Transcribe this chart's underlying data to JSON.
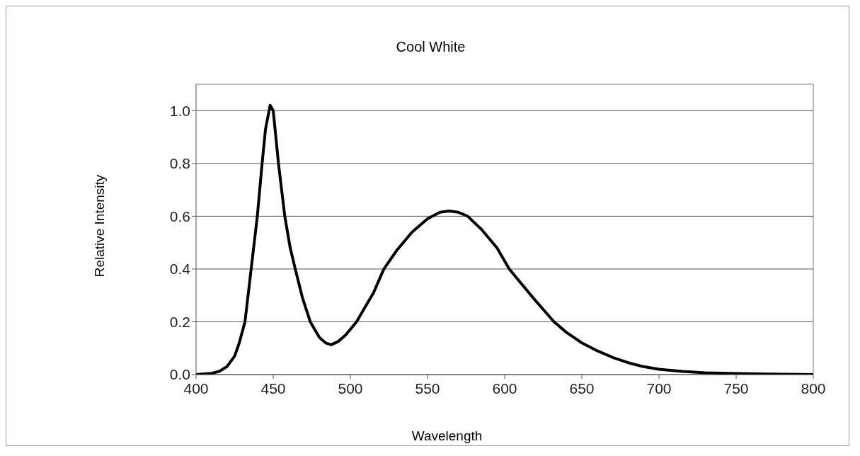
{
  "chart_data": {
    "type": "line",
    "title": "Cool White",
    "xlabel": "Wavelength",
    "ylabel": "Relative Intensity",
    "x": [
      400,
      410,
      415,
      420,
      425,
      428,
      431.7,
      435.7,
      439.7,
      442.8,
      445,
      448,
      450,
      453.4,
      457.5,
      461,
      464.3,
      469,
      474,
      480,
      484,
      487.6,
      492,
      497,
      504,
      510,
      515,
      521.7,
      530,
      540,
      550,
      558,
      564,
      570,
      576,
      585,
      595,
      603,
      610,
      620,
      632,
      640,
      650,
      660,
      670,
      680,
      690,
      700,
      715,
      730,
      750,
      770,
      800
    ],
    "series": [
      {
        "color": "#000000",
        "values": [
          0.0,
          0.005,
          0.012,
          0.03,
          0.07,
          0.12,
          0.2,
          0.4,
          0.6,
          0.8,
          0.93,
          1.02,
          1.0,
          0.8,
          0.6,
          0.48,
          0.4,
          0.29,
          0.2,
          0.14,
          0.12,
          0.113,
          0.125,
          0.15,
          0.2,
          0.26,
          0.31,
          0.4,
          0.47,
          0.54,
          0.59,
          0.615,
          0.62,
          0.615,
          0.6,
          0.55,
          0.48,
          0.4,
          0.35,
          0.28,
          0.2,
          0.16,
          0.12,
          0.09,
          0.065,
          0.045,
          0.03,
          0.02,
          0.012,
          0.007,
          0.004,
          0.002,
          0.0
        ]
      }
    ],
    "xlim": [
      400,
      800
    ],
    "xticks": [
      400,
      450,
      500,
      550,
      600,
      650,
      700,
      750,
      800
    ],
    "ylim": [
      0,
      1.1
    ],
    "yticks": [
      {
        "value": 0,
        "label": "0.0"
      },
      {
        "value": 0.2,
        "label": "0.2"
      },
      {
        "value": 0.4,
        "label": "0.4"
      },
      {
        "value": 0.6,
        "label": "0.6"
      },
      {
        "value": 0.8,
        "label": "0.8"
      },
      {
        "value": 1,
        "label": "1.0"
      }
    ],
    "grid": "y",
    "marker": "none",
    "line_style": "solid"
  }
}
